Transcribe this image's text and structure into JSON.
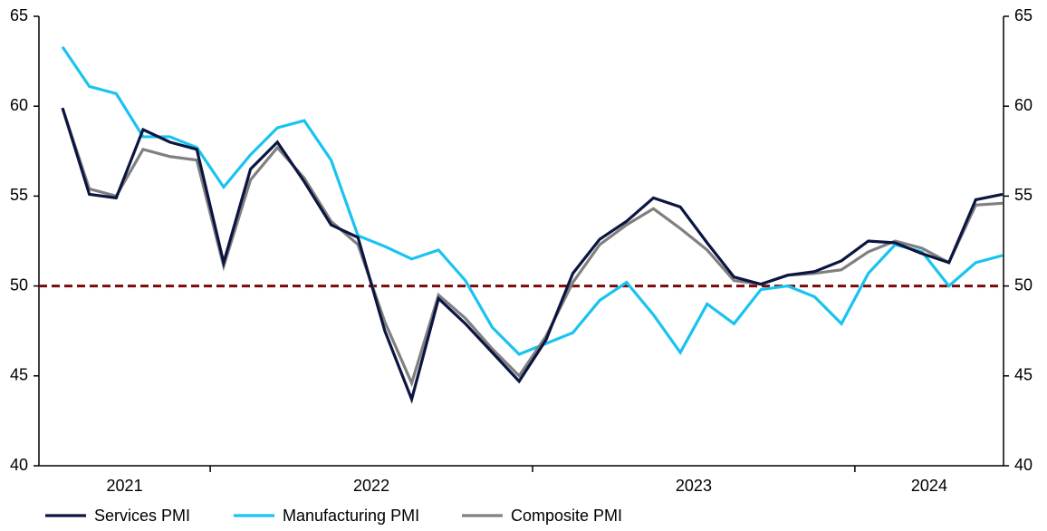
{
  "chart_data": {
    "type": "line",
    "categories": [
      null,
      null,
      null,
      null,
      null,
      null,
      null,
      null,
      null,
      null,
      null,
      null,
      null,
      null,
      null,
      null,
      null,
      null,
      null,
      null,
      null,
      null,
      null,
      null,
      null,
      null,
      null,
      null,
      null,
      null,
      null,
      null,
      null,
      null,
      null,
      null
    ],
    "year_labels": [
      "2021",
      "2022",
      "2023",
      "2024"
    ],
    "series": [
      {
        "name": "Services PMI",
        "color": "#0b1541",
        "values": [
          59.9,
          55.1,
          54.9,
          58.7,
          58.0,
          57.6,
          51.3,
          56.5,
          58.0,
          55.8,
          53.4,
          52.7,
          47.5,
          43.7,
          49.3,
          47.9,
          46.3,
          44.7,
          47.0,
          50.7,
          52.6,
          53.6,
          54.9,
          54.4,
          52.4,
          50.5,
          50.1,
          50.6,
          50.8,
          51.4,
          52.5,
          52.4,
          51.8,
          51.3,
          54.8,
          55.1
        ]
      },
      {
        "name": "Manufacturing PMI",
        "color": "#19c3f0",
        "values": [
          63.3,
          61.1,
          60.7,
          58.3,
          58.3,
          57.7,
          55.5,
          57.3,
          58.8,
          59.2,
          57.0,
          52.8,
          52.2,
          51.5,
          52.0,
          50.3,
          47.7,
          46.2,
          46.8,
          47.4,
          49.2,
          50.2,
          48.4,
          46.3,
          49.0,
          47.9,
          49.8,
          50.0,
          49.4,
          47.9,
          50.7,
          52.3,
          51.9,
          50.0,
          51.3,
          51.7
        ]
      },
      {
        "name": "Composite PMI",
        "color": "#808080",
        "values": [
          59.9,
          55.4,
          55.0,
          57.6,
          57.2,
          57.0,
          51.1,
          55.9,
          57.7,
          56.0,
          53.6,
          52.3,
          48.0,
          44.6,
          49.5,
          48.2,
          46.5,
          45.0,
          47.2,
          50.2,
          52.3,
          53.4,
          54.3,
          53.2,
          52.0,
          50.3,
          50.1,
          50.6,
          50.7,
          50.9,
          51.9,
          52.5,
          52.1,
          51.3,
          54.5,
          54.6
        ]
      }
    ],
    "ylim": [
      40,
      65
    ],
    "yticks": [
      40,
      45,
      50,
      55,
      60,
      65
    ],
    "y2lim": [
      40,
      65
    ],
    "y2ticks": [
      40,
      45,
      50,
      55,
      60,
      65
    ],
    "reference_line": {
      "value": 50,
      "color": "#7a0a0a",
      "dashed": true
    },
    "legend": "bottom",
    "grid": false
  }
}
